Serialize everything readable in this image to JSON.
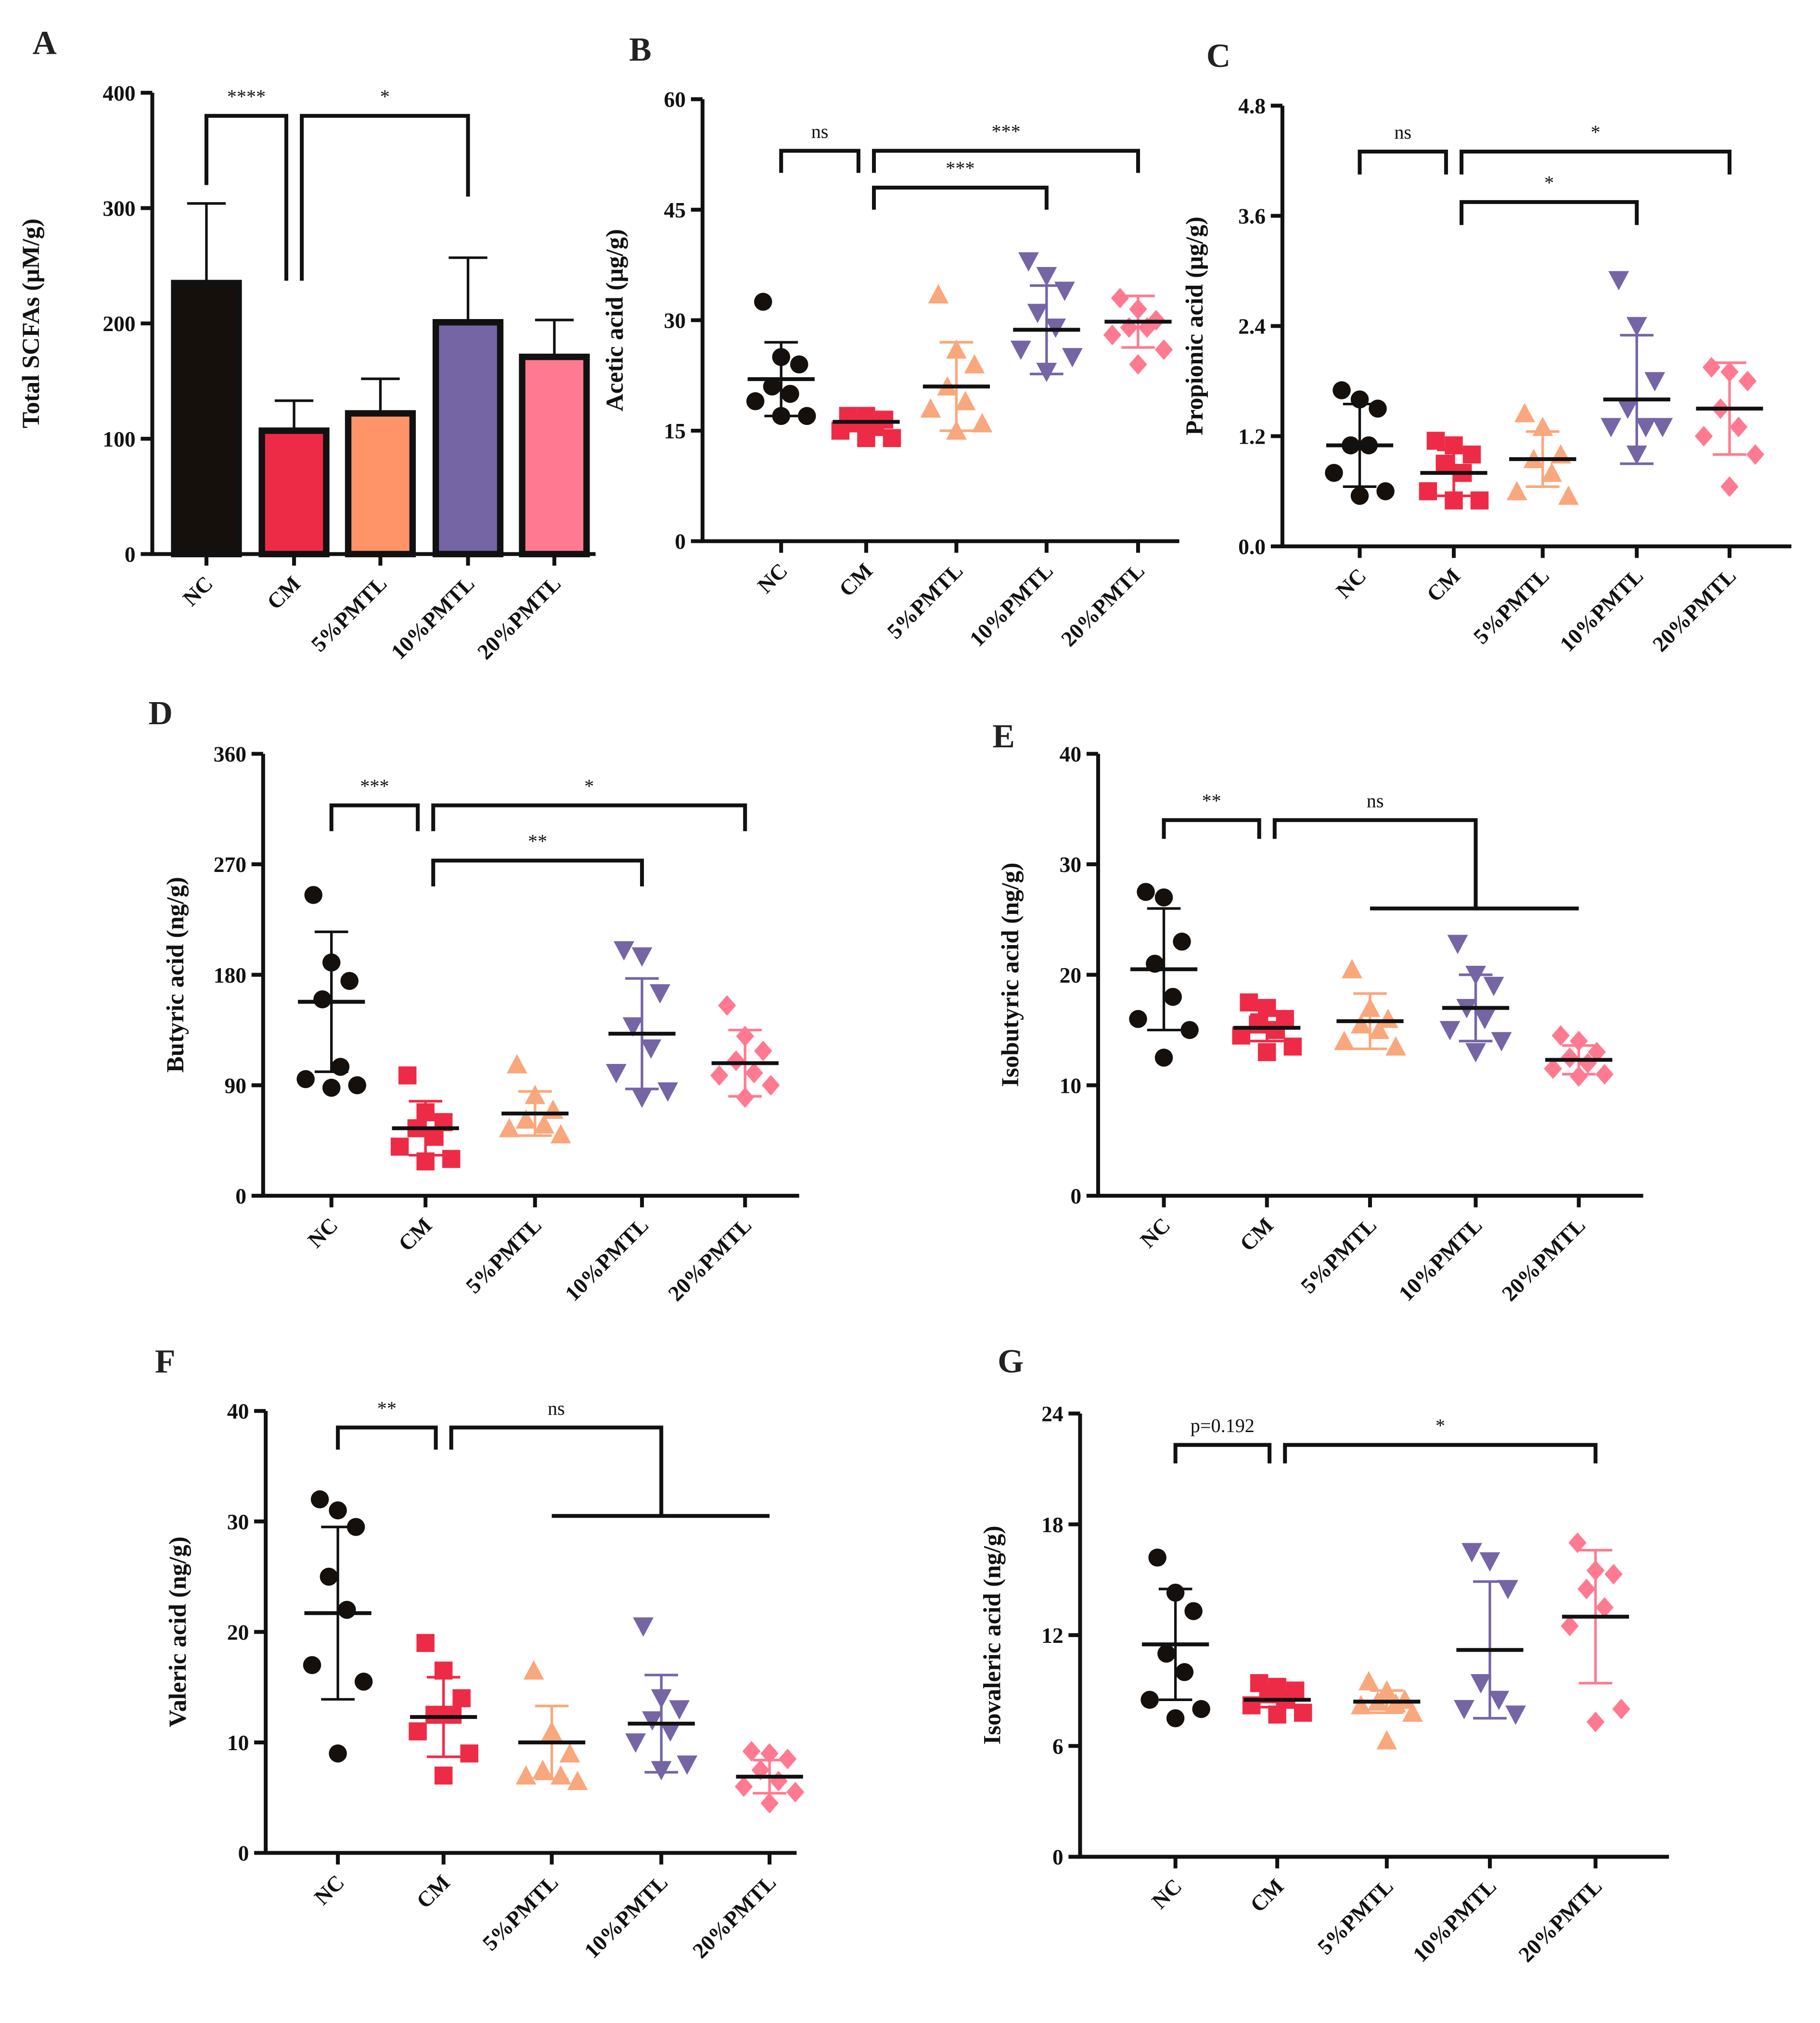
{
  "chart_data": [
    {
      "panel": "A",
      "type": "bar",
      "ylabel": "Total SCFAs (μM/g)",
      "ylim": [
        0,
        400
      ],
      "yticks": [
        0,
        100,
        200,
        300,
        400
      ],
      "tick_labels": [
        "0",
        "100",
        "200",
        "300",
        "400"
      ],
      "categories": [
        "NC",
        "CM",
        "5%PMTL",
        "10%PMTL",
        "20%PMTL"
      ],
      "colors": [
        "#15100c",
        "#ee2b46",
        "#fe9468",
        "#7565a5",
        "#ff7a90"
      ],
      "means": [
        235,
        107,
        122,
        201,
        171
      ],
      "sd": [
        69,
        26,
        30,
        56,
        32
      ],
      "comparisons": [
        {
          "a": 0,
          "b": 1,
          "label": "****",
          "level": 380,
          "drop": [
            320,
            237
          ]
        },
        {
          "a": 1,
          "b": 3,
          "label": "*",
          "level": 380,
          "drop": [
            237,
            310
          ]
        }
      ]
    },
    {
      "panel": "B",
      "type": "scatter",
      "ylabel": "Acetic acid (μg/g)",
      "ylim": [
        0,
        60
      ],
      "yticks": [
        0,
        15,
        30,
        45,
        60
      ],
      "tick_labels": [
        "0",
        "15",
        "30",
        "45",
        "60"
      ],
      "categories": [
        "NC",
        "CM",
        "5%PMTL",
        "10%PMTL",
        "20%PMTL"
      ],
      "colors": [
        "#15100c",
        "#ee2b46",
        "#f9a77c",
        "#7565a5",
        "#ff7a90"
      ],
      "means": [
        22,
        16.2,
        21,
        28.7,
        29.8
      ],
      "sd": [
        5,
        1,
        6,
        6,
        3.5
      ],
      "points": [
        [
          32.5,
          25,
          24,
          21,
          20,
          19,
          17,
          17
        ],
        [
          17,
          17,
          16.5,
          16,
          15.5,
          15,
          14,
          14
        ],
        [
          33.5,
          26,
          24,
          21,
          19,
          18,
          16,
          15
        ],
        [
          38,
          36,
          34,
          31,
          29,
          26,
          25,
          23
        ],
        [
          33,
          31.5,
          30,
          29,
          29,
          28,
          26,
          24
        ]
      ],
      "comparisons": [
        {
          "a": 0,
          "b": 1,
          "label": "ns",
          "level": 53,
          "drop": [
            50,
            50
          ]
        },
        {
          "a": 1,
          "b": 4,
          "label": "***",
          "level": 53,
          "drop": [
            50,
            50
          ]
        },
        {
          "a": 1,
          "b": 3,
          "label": "***",
          "level": 48,
          "drop": [
            45,
            45
          ]
        }
      ]
    },
    {
      "panel": "C",
      "type": "scatter",
      "ylabel": "Propionic acid (μg/g)",
      "ylim": [
        0,
        4.8
      ],
      "yticks": [
        0,
        1.2,
        2.4,
        3.6,
        4.8
      ],
      "tick_labels": [
        "0.0",
        "1.2",
        "2.4",
        "3.6",
        "4.8"
      ],
      "categories": [
        "NC",
        "CM",
        "5%PMTL",
        "10%PMTL",
        "20%PMTL"
      ],
      "colors": [
        "#15100c",
        "#ee2b46",
        "#f9a77c",
        "#7565a5",
        "#ff7a90"
      ],
      "means": [
        1.1,
        0.8,
        0.95,
        1.6,
        1.5
      ],
      "sd": [
        0.45,
        0.25,
        0.3,
        0.7,
        0.5
      ],
      "points": [
        [
          1.7,
          1.6,
          1.5,
          1.1,
          1.1,
          0.8,
          0.6,
          0.55
        ],
        [
          1.15,
          1.1,
          1.0,
          0.9,
          0.8,
          0.6,
          0.5,
          0.5
        ],
        [
          1.45,
          1.3,
          1.0,
          0.95,
          0.8,
          0.6,
          0.55
        ],
        [
          2.9,
          2.4,
          1.8,
          1.5,
          1.3,
          1.3,
          1.3,
          1.0
        ],
        [
          1.95,
          1.9,
          1.8,
          1.5,
          1.3,
          1.2,
          1.0,
          0.65
        ]
      ],
      "comparisons": [
        {
          "a": 0,
          "b": 1,
          "label": "ns",
          "level": 4.3,
          "drop": [
            4.05,
            4.05
          ]
        },
        {
          "a": 1,
          "b": 4,
          "label": "*",
          "level": 4.3,
          "drop": [
            4.05,
            4.05
          ]
        },
        {
          "a": 1,
          "b": 3,
          "label": "*",
          "level": 3.75,
          "drop": [
            3.5,
            3.5
          ]
        }
      ]
    },
    {
      "panel": "D",
      "type": "scatter",
      "ylabel": "Butyric acid (ng/g)",
      "ylim": [
        0,
        360
      ],
      "yticks": [
        0,
        90,
        180,
        270,
        360
      ],
      "tick_labels": [
        "0",
        "90",
        "180",
        "270",
        "360"
      ],
      "categories": [
        "NC",
        "CM",
        "5%PMTL",
        "10%PMTL",
        "20%PMTL"
      ],
      "colors": [
        "#15100c",
        "#ee2b46",
        "#f9a77c",
        "#7565a5",
        "#ff7a90"
      ],
      "means": [
        158,
        55,
        67,
        132,
        108
      ],
      "sd": [
        57,
        22,
        18,
        45,
        27
      ],
      "points": [
        [
          245,
          190,
          175,
          160,
          105,
          95,
          90,
          88
        ],
        [
          98,
          68,
          60,
          55,
          48,
          40,
          30,
          28
        ],
        [
          107,
          82,
          70,
          62,
          58,
          55,
          50
        ],
        [
          200,
          195,
          165,
          138,
          120,
          100,
          85,
          80
        ],
        [
          155,
          130,
          118,
          110,
          100,
          98,
          90,
          80
        ]
      ],
      "comparisons": [
        {
          "a": 0,
          "b": 1,
          "label": "***",
          "level": 318,
          "drop": [
            297,
            297
          ]
        },
        {
          "a": 1,
          "b": 4,
          "label": "*",
          "level": 318,
          "drop": [
            297,
            297
          ]
        },
        {
          "a": 1,
          "b": 3,
          "label": "**",
          "level": 273,
          "drop": [
            252,
            252
          ]
        }
      ]
    },
    {
      "panel": "E",
      "type": "scatter",
      "ylabel": "Isobutyric acid (ng/g)",
      "ylim": [
        0,
        40
      ],
      "yticks": [
        0,
        10,
        20,
        30,
        40
      ],
      "tick_labels": [
        "0",
        "10",
        "20",
        "30",
        "40"
      ],
      "categories": [
        "NC",
        "CM",
        "5%PMTL",
        "10%PMTL",
        "20%PMTL"
      ],
      "colors": [
        "#15100c",
        "#ee2b46",
        "#f9a77c",
        "#7565a5",
        "#ff7a90"
      ],
      "means": [
        20.5,
        15.2,
        15.8,
        17,
        12.3
      ],
      "sd": [
        5.5,
        1.2,
        2.5,
        3,
        1.3
      ],
      "points": [
        [
          27.5,
          27,
          23,
          21,
          18,
          16,
          15,
          12.5
        ],
        [
          17.5,
          17,
          16,
          15.5,
          15,
          14.5,
          13.5,
          13
        ],
        [
          20.5,
          17,
          16,
          15.5,
          15,
          14,
          13.5
        ],
        [
          22.8,
          20,
          19,
          17,
          16,
          15,
          14,
          13
        ],
        [
          14.5,
          14,
          13,
          12.5,
          12,
          11.5,
          11,
          10.8
        ]
      ],
      "comparisons": [
        {
          "a": 0,
          "b": 1,
          "label": "**",
          "level": 34,
          "drop": [
            32.3,
            32.3
          ]
        },
        {
          "a": 1,
          "b": 3,
          "label": "ns",
          "level": 34,
          "drop": [
            32.3,
            26
          ],
          "group": [
            2,
            4
          ]
        }
      ]
    },
    {
      "panel": "F",
      "type": "scatter",
      "ylabel": "Valeric acid (ng/g)",
      "ylim": [
        0,
        40
      ],
      "yticks": [
        0,
        10,
        20,
        30,
        40
      ],
      "tick_labels": [
        "0",
        "10",
        "20",
        "30",
        "40"
      ],
      "categories": [
        "NC",
        "CM",
        "5%PMTL",
        "10%PMTL",
        "20%PMTL"
      ],
      "colors": [
        "#15100c",
        "#ee2b46",
        "#f9a77c",
        "#7565a5",
        "#ff7a90"
      ],
      "means": [
        21.7,
        12.3,
        10,
        11.7,
        6.9
      ],
      "sd": [
        7.8,
        3.6,
        3.3,
        4.4,
        1.5
      ],
      "points": [
        [
          32,
          31,
          29.5,
          25,
          22,
          17,
          15.5,
          9
        ],
        [
          19,
          16.5,
          14,
          12.5,
          12.5,
          11,
          9,
          7
        ],
        [
          16.5,
          11,
          9,
          7.5,
          7,
          7,
          6.5
        ],
        [
          20.5,
          14,
          13,
          12,
          11,
          10,
          8,
          7.5
        ],
        [
          9.2,
          9,
          8.5,
          7.5,
          6.5,
          6,
          5.5,
          4.5
        ]
      ],
      "comparisons": [
        {
          "a": 0,
          "b": 1,
          "label": "**",
          "level": 38.5,
          "drop": [
            36.5,
            36.5
          ]
        },
        {
          "a": 1,
          "b": 3,
          "label": "ns",
          "level": 38.5,
          "drop": [
            36.5,
            30.5
          ],
          "group": [
            2,
            4
          ]
        }
      ]
    },
    {
      "panel": "G",
      "type": "scatter",
      "ylabel": "Isovaleric acid (ng/g)",
      "ylim": [
        0,
        24
      ],
      "yticks": [
        0,
        6,
        12,
        18,
        24
      ],
      "tick_labels": [
        "0",
        "6",
        "12",
        "18",
        "24"
      ],
      "categories": [
        "NC",
        "CM",
        "5%PMTL",
        "10%PMTL",
        "20%PMTL"
      ],
      "colors": [
        "#15100c",
        "#ee2b46",
        "#f9a77c",
        "#7565a5",
        "#ff7a90"
      ],
      "means": [
        11.5,
        8.5,
        8.4,
        11.2,
        13
      ],
      "sd": [
        3,
        0.4,
        0.6,
        3.7,
        3.6
      ],
      "points": [
        [
          16.2,
          14.3,
          13.3,
          11,
          10,
          8.5,
          8,
          7.5
        ],
        [
          9.4,
          9.2,
          9,
          8.8,
          8.5,
          8.2,
          7.8,
          7.7
        ],
        [
          9.5,
          9,
          8.5,
          8.4,
          8.3,
          8.2,
          7.8,
          6.3
        ],
        [
          16.5,
          16,
          14.5,
          9.4,
          8.5,
          8,
          7.7
        ],
        [
          17,
          15.5,
          15.3,
          14.5,
          13.5,
          12.5,
          8,
          7.3
        ]
      ],
      "comparisons": [
        {
          "a": 0,
          "b": 1,
          "label": "p=0.192",
          "level": 22.3,
          "drop": [
            21.3,
            21.3
          ]
        },
        {
          "a": 1,
          "b": 4,
          "label": "*",
          "level": 22.3,
          "drop": [
            21.3,
            21.3
          ]
        }
      ]
    }
  ]
}
